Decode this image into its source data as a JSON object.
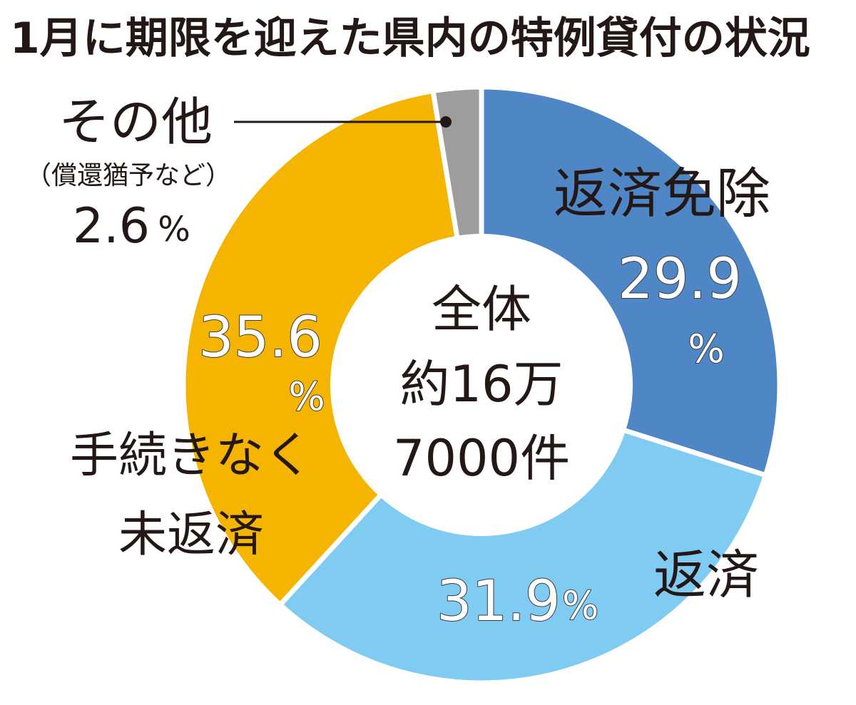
{
  "title": "1月に期限を迎えた県内の特例貸付の状況",
  "center": {
    "line1": "全体",
    "line2": "約16万",
    "line3": "7000件"
  },
  "chart_data": {
    "type": "pie",
    "title": "1月に期限を迎えた県内の特例貸付の状況",
    "donut": true,
    "start": "top, clockwise",
    "unit": "%",
    "slices": [
      {
        "label": "返済免除",
        "value": 29.9,
        "value_text": "29.9",
        "color": "#4f86c6"
      },
      {
        "label": "返済",
        "value": 31.9,
        "value_text": "31.9",
        "color": "#7fcbf1"
      },
      {
        "label": "手続きなく未返済",
        "label_lines": [
          "手続きなく",
          "未返済"
        ],
        "value": 35.6,
        "value_text": "35.6",
        "color": "#f4b400"
      },
      {
        "label": "その他",
        "sublabel": "（償還猶予など）",
        "value": 2.6,
        "value_text": "2.6",
        "color": "#9d9d9d"
      }
    ]
  }
}
